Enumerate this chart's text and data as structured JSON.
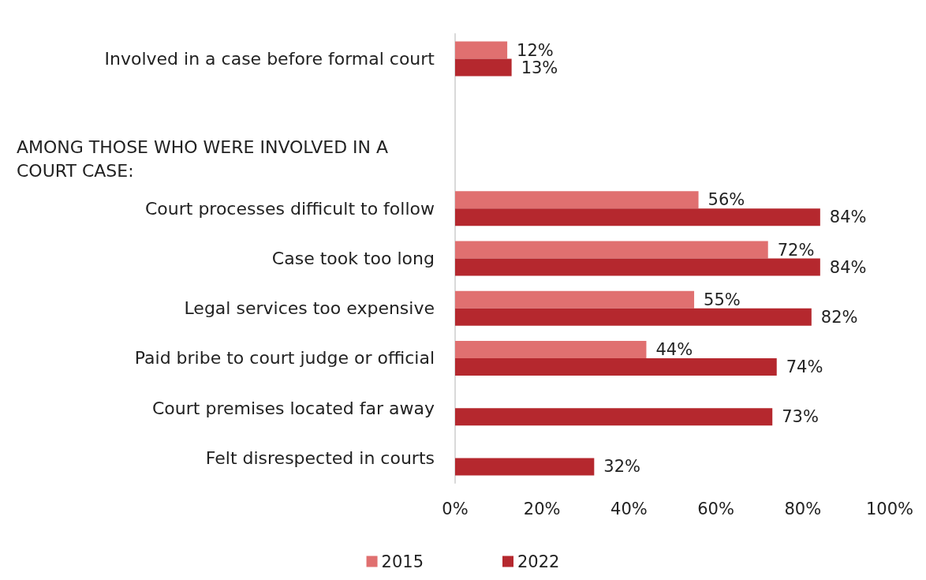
{
  "chart_data": {
    "type": "bar",
    "orientation": "horizontal",
    "annotations": [
      "AMONG THOSE WHO WERE INVOLVED IN A COURT CASE:"
    ],
    "categories": [
      "Involved in a case before formal court",
      null,
      null,
      "Court processes difficult to follow",
      "Case took too long",
      "Legal services too expensive",
      "Paid bribe to court judge or official",
      "Court premises located far away",
      "Felt disrespected in courts"
    ],
    "series": [
      {
        "name": "2015",
        "color": "#e07070",
        "values": [
          12,
          null,
          null,
          56,
          72,
          55,
          44,
          null,
          null
        ],
        "value_labels": [
          "12%",
          null,
          null,
          "56%",
          "72%",
          "55%",
          "44%",
          null,
          null
        ]
      },
      {
        "name": "2022",
        "color": "#b5282e",
        "values": [
          13,
          null,
          null,
          84,
          84,
          82,
          74,
          73,
          32
        ],
        "value_labels": [
          "13%",
          null,
          null,
          "84%",
          "84%",
          "82%",
          "74%",
          "73%",
          "32%"
        ]
      }
    ],
    "xlim": [
      0,
      100
    ],
    "xticks": [
      {
        "value": 0,
        "label": "0%"
      },
      {
        "value": 20,
        "label": "20%"
      },
      {
        "value": 40,
        "label": "40%"
      },
      {
        "value": 60,
        "label": "60%"
      },
      {
        "value": 80,
        "label": "80%"
      },
      {
        "value": 100,
        "label": "100%"
      }
    ],
    "grid": false,
    "legend": "bottom"
  }
}
